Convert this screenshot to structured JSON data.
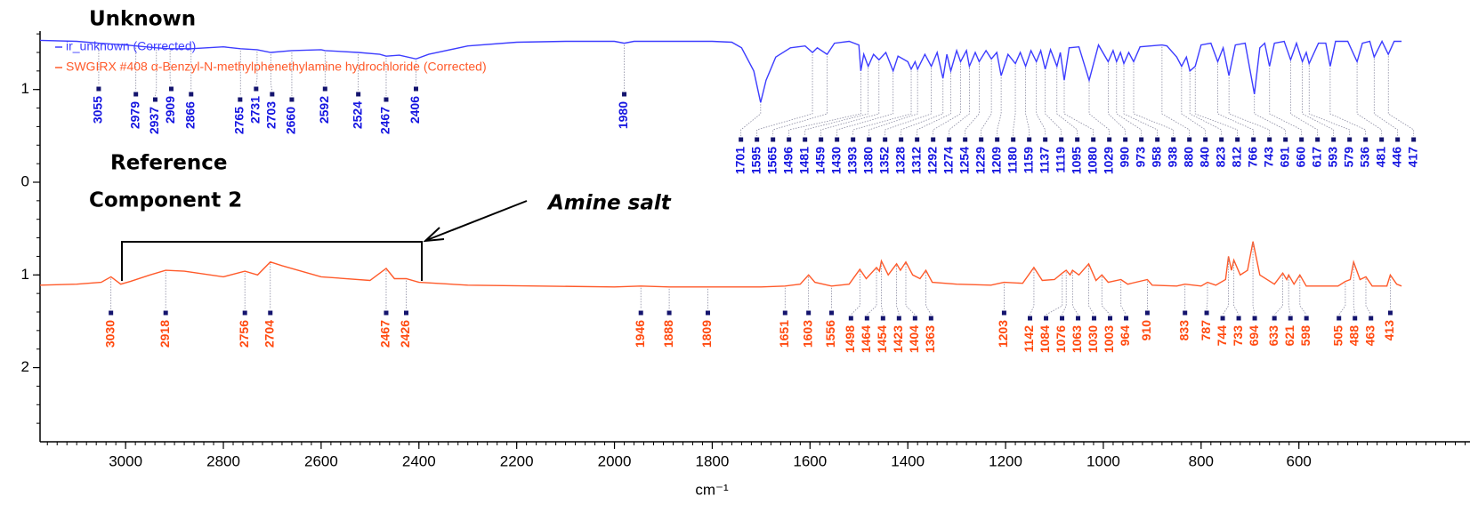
{
  "chart_data": {
    "type": "line",
    "x_label": "cm⁻¹",
    "xlim": [
      3175,
      250
    ],
    "xticks": [
      3000,
      2800,
      2600,
      2400,
      2200,
      2000,
      1800,
      1600,
      1400,
      1200,
      1000,
      800,
      600
    ],
    "ylim": [
      -2.8,
      1.63
    ],
    "yticks": [
      1,
      0,
      {
        "value": -1,
        "label": "1"
      },
      {
        "value": -2,
        "label": "2"
      }
    ],
    "legend": "upper left",
    "annotations": [
      {
        "text": "Unknown"
      },
      {
        "text": "Reference"
      },
      {
        "text": "Component 2"
      },
      {
        "text": "Amine salt"
      }
    ],
    "series": [
      {
        "name": "ir_unknown (Corrected)",
        "color": "#3d3dff",
        "label_color": "#1515e0",
        "x": [
          3175,
          3100,
          3055,
          3000,
          2979,
          2937,
          2909,
          2866,
          2800,
          2765,
          2731,
          2703,
          2660,
          2600,
          2592,
          2524,
          2480,
          2467,
          2440,
          2406,
          2380,
          2300,
          2200,
          2100,
          2000,
          1980,
          1960,
          1800,
          1760,
          1740,
          1715,
          1701,
          1690,
          1670,
          1640,
          1610,
          1595,
          1585,
          1565,
          1550,
          1520,
          1500,
          1496,
          1490,
          1481,
          1470,
          1459,
          1445,
          1430,
          1420,
          1400,
          1393,
          1385,
          1380,
          1365,
          1352,
          1340,
          1328,
          1320,
          1312,
          1300,
          1292,
          1280,
          1274,
          1262,
          1254,
          1240,
          1229,
          1218,
          1209,
          1195,
          1180,
          1170,
          1159,
          1148,
          1137,
          1128,
          1119,
          1108,
          1095,
          1088,
          1080,
          1070,
          1050,
          1029,
          1010,
          990,
          980,
          973,
          965,
          958,
          948,
          938,
          925,
          880,
          870,
          850,
          840,
          830,
          823,
          812,
          800,
          780,
          766,
          755,
          743,
          730,
          710,
          691,
          680,
          670,
          660,
          650,
          630,
          617,
          605,
          593,
          585,
          579,
          560,
          545,
          536,
          525,
          500,
          481,
          470,
          455,
          446,
          430,
          417,
          405,
          390
        ],
        "values": [
          1.53,
          1.52,
          1.5,
          1.48,
          1.47,
          1.45,
          1.44,
          1.44,
          1.46,
          1.44,
          1.43,
          1.4,
          1.42,
          1.43,
          1.42,
          1.4,
          1.38,
          1.36,
          1.37,
          1.33,
          1.38,
          1.47,
          1.51,
          1.52,
          1.52,
          1.5,
          1.52,
          1.52,
          1.51,
          1.45,
          1.2,
          0.86,
          1.1,
          1.35,
          1.45,
          1.47,
          1.4,
          1.45,
          1.38,
          1.5,
          1.52,
          1.48,
          1.2,
          1.38,
          1.25,
          1.38,
          1.32,
          1.4,
          1.2,
          1.36,
          1.3,
          1.22,
          1.3,
          1.22,
          1.38,
          1.25,
          1.4,
          1.12,
          1.38,
          1.2,
          1.42,
          1.3,
          1.42,
          1.25,
          1.4,
          1.3,
          1.42,
          1.33,
          1.4,
          1.15,
          1.38,
          1.28,
          1.4,
          1.25,
          1.42,
          1.3,
          1.42,
          1.22,
          1.43,
          1.25,
          1.4,
          1.1,
          1.45,
          1.46,
          1.1,
          1.48,
          1.3,
          1.42,
          1.3,
          1.4,
          1.28,
          1.4,
          1.3,
          1.46,
          1.48,
          1.47,
          1.35,
          1.25,
          1.35,
          1.2,
          1.25,
          1.48,
          1.5,
          1.3,
          1.45,
          1.15,
          1.48,
          1.5,
          0.95,
          1.45,
          1.5,
          1.25,
          1.5,
          1.52,
          1.32,
          1.5,
          1.3,
          1.4,
          1.28,
          1.5,
          1.5,
          1.25,
          1.52,
          1.52,
          1.3,
          1.5,
          1.52,
          1.35,
          1.52,
          1.38,
          1.52,
          1.52
        ],
        "peak_labels": [
          3055,
          2979,
          2937,
          2909,
          2866,
          2765,
          2731,
          2703,
          2660,
          2592,
          2524,
          2467,
          2406,
          1980,
          1701,
          1595,
          1565,
          1496,
          1481,
          1459,
          1430,
          1393,
          1380,
          1352,
          1328,
          1312,
          1292,
          1274,
          1254,
          1229,
          1209,
          1180,
          1159,
          1137,
          1119,
          1095,
          1080,
          1029,
          990,
          973,
          958,
          938,
          880,
          840,
          823,
          812,
          766,
          743,
          691,
          660,
          617,
          593,
          579,
          536,
          481,
          446,
          417
        ]
      },
      {
        "name": "SWGIRX #408  α-Benzyl-N-methylphenethylamine hydrochloride (Corrected)",
        "color": "#ff5a2a",
        "label_color": "#ff4a10",
        "x": [
          3175,
          3100,
          3050,
          3030,
          3010,
          2990,
          2950,
          2918,
          2880,
          2800,
          2756,
          2730,
          2704,
          2680,
          2600,
          2500,
          2467,
          2450,
          2426,
          2400,
          2300,
          2000,
          1946,
          1888,
          1809,
          1700,
          1651,
          1620,
          1603,
          1590,
          1556,
          1520,
          1498,
          1485,
          1464,
          1458,
          1454,
          1440,
          1423,
          1415,
          1404,
          1390,
          1375,
          1363,
          1350,
          1300,
          1230,
          1203,
          1165,
          1142,
          1125,
          1100,
          1084,
          1076,
          1068,
          1063,
          1050,
          1030,
          1015,
          1003,
          990,
          964,
          950,
          910,
          900,
          850,
          833,
          800,
          787,
          770,
          750,
          744,
          738,
          733,
          720,
          705,
          694,
          680,
          650,
          633,
          625,
          621,
          610,
          598,
          585,
          520,
          505,
          495,
          488,
          475,
          463,
          450,
          420,
          413,
          400,
          390
        ],
        "values": [
          -1.11,
          -1.1,
          -1.08,
          -1.02,
          -1.1,
          -1.07,
          -1.0,
          -0.95,
          -0.96,
          -1.02,
          -0.96,
          -1.0,
          -0.86,
          -0.9,
          -1.02,
          -1.06,
          -0.93,
          -1.04,
          -1.04,
          -1.08,
          -1.11,
          -1.13,
          -1.12,
          -1.13,
          -1.13,
          -1.13,
          -1.12,
          -1.1,
          -1.0,
          -1.08,
          -1.12,
          -1.1,
          -0.94,
          -1.04,
          -0.92,
          -0.96,
          -0.85,
          -1.0,
          -0.88,
          -0.95,
          -0.86,
          -1.0,
          -1.04,
          -0.95,
          -1.08,
          -1.1,
          -1.11,
          -1.08,
          -1.09,
          -0.92,
          -1.06,
          -1.05,
          -0.98,
          -0.95,
          -1.0,
          -0.95,
          -1.0,
          -0.88,
          -1.06,
          -1.0,
          -1.08,
          -1.05,
          -1.1,
          -1.05,
          -1.11,
          -1.12,
          -1.1,
          -1.12,
          -1.08,
          -1.11,
          -1.05,
          -0.8,
          -0.95,
          -0.84,
          -1.0,
          -0.95,
          -0.64,
          -1.0,
          -1.1,
          -0.98,
          -1.05,
          -1.0,
          -1.1,
          -1.0,
          -1.12,
          -1.12,
          -1.07,
          -1.05,
          -0.86,
          -1.05,
          -1.02,
          -1.12,
          -1.12,
          -1.0,
          -1.1,
          -1.12
        ],
        "peak_labels": [
          3030,
          2918,
          2756,
          2704,
          2467,
          2426,
          1946,
          1888,
          1809,
          1651,
          1603,
          1556,
          1498,
          1464,
          1454,
          1423,
          1404,
          1363,
          1203,
          1142,
          1084,
          1076,
          1063,
          1030,
          1003,
          964,
          910,
          833,
          787,
          744,
          733,
          694,
          633,
          621,
          598,
          505,
          488,
          463,
          413
        ]
      }
    ]
  }
}
